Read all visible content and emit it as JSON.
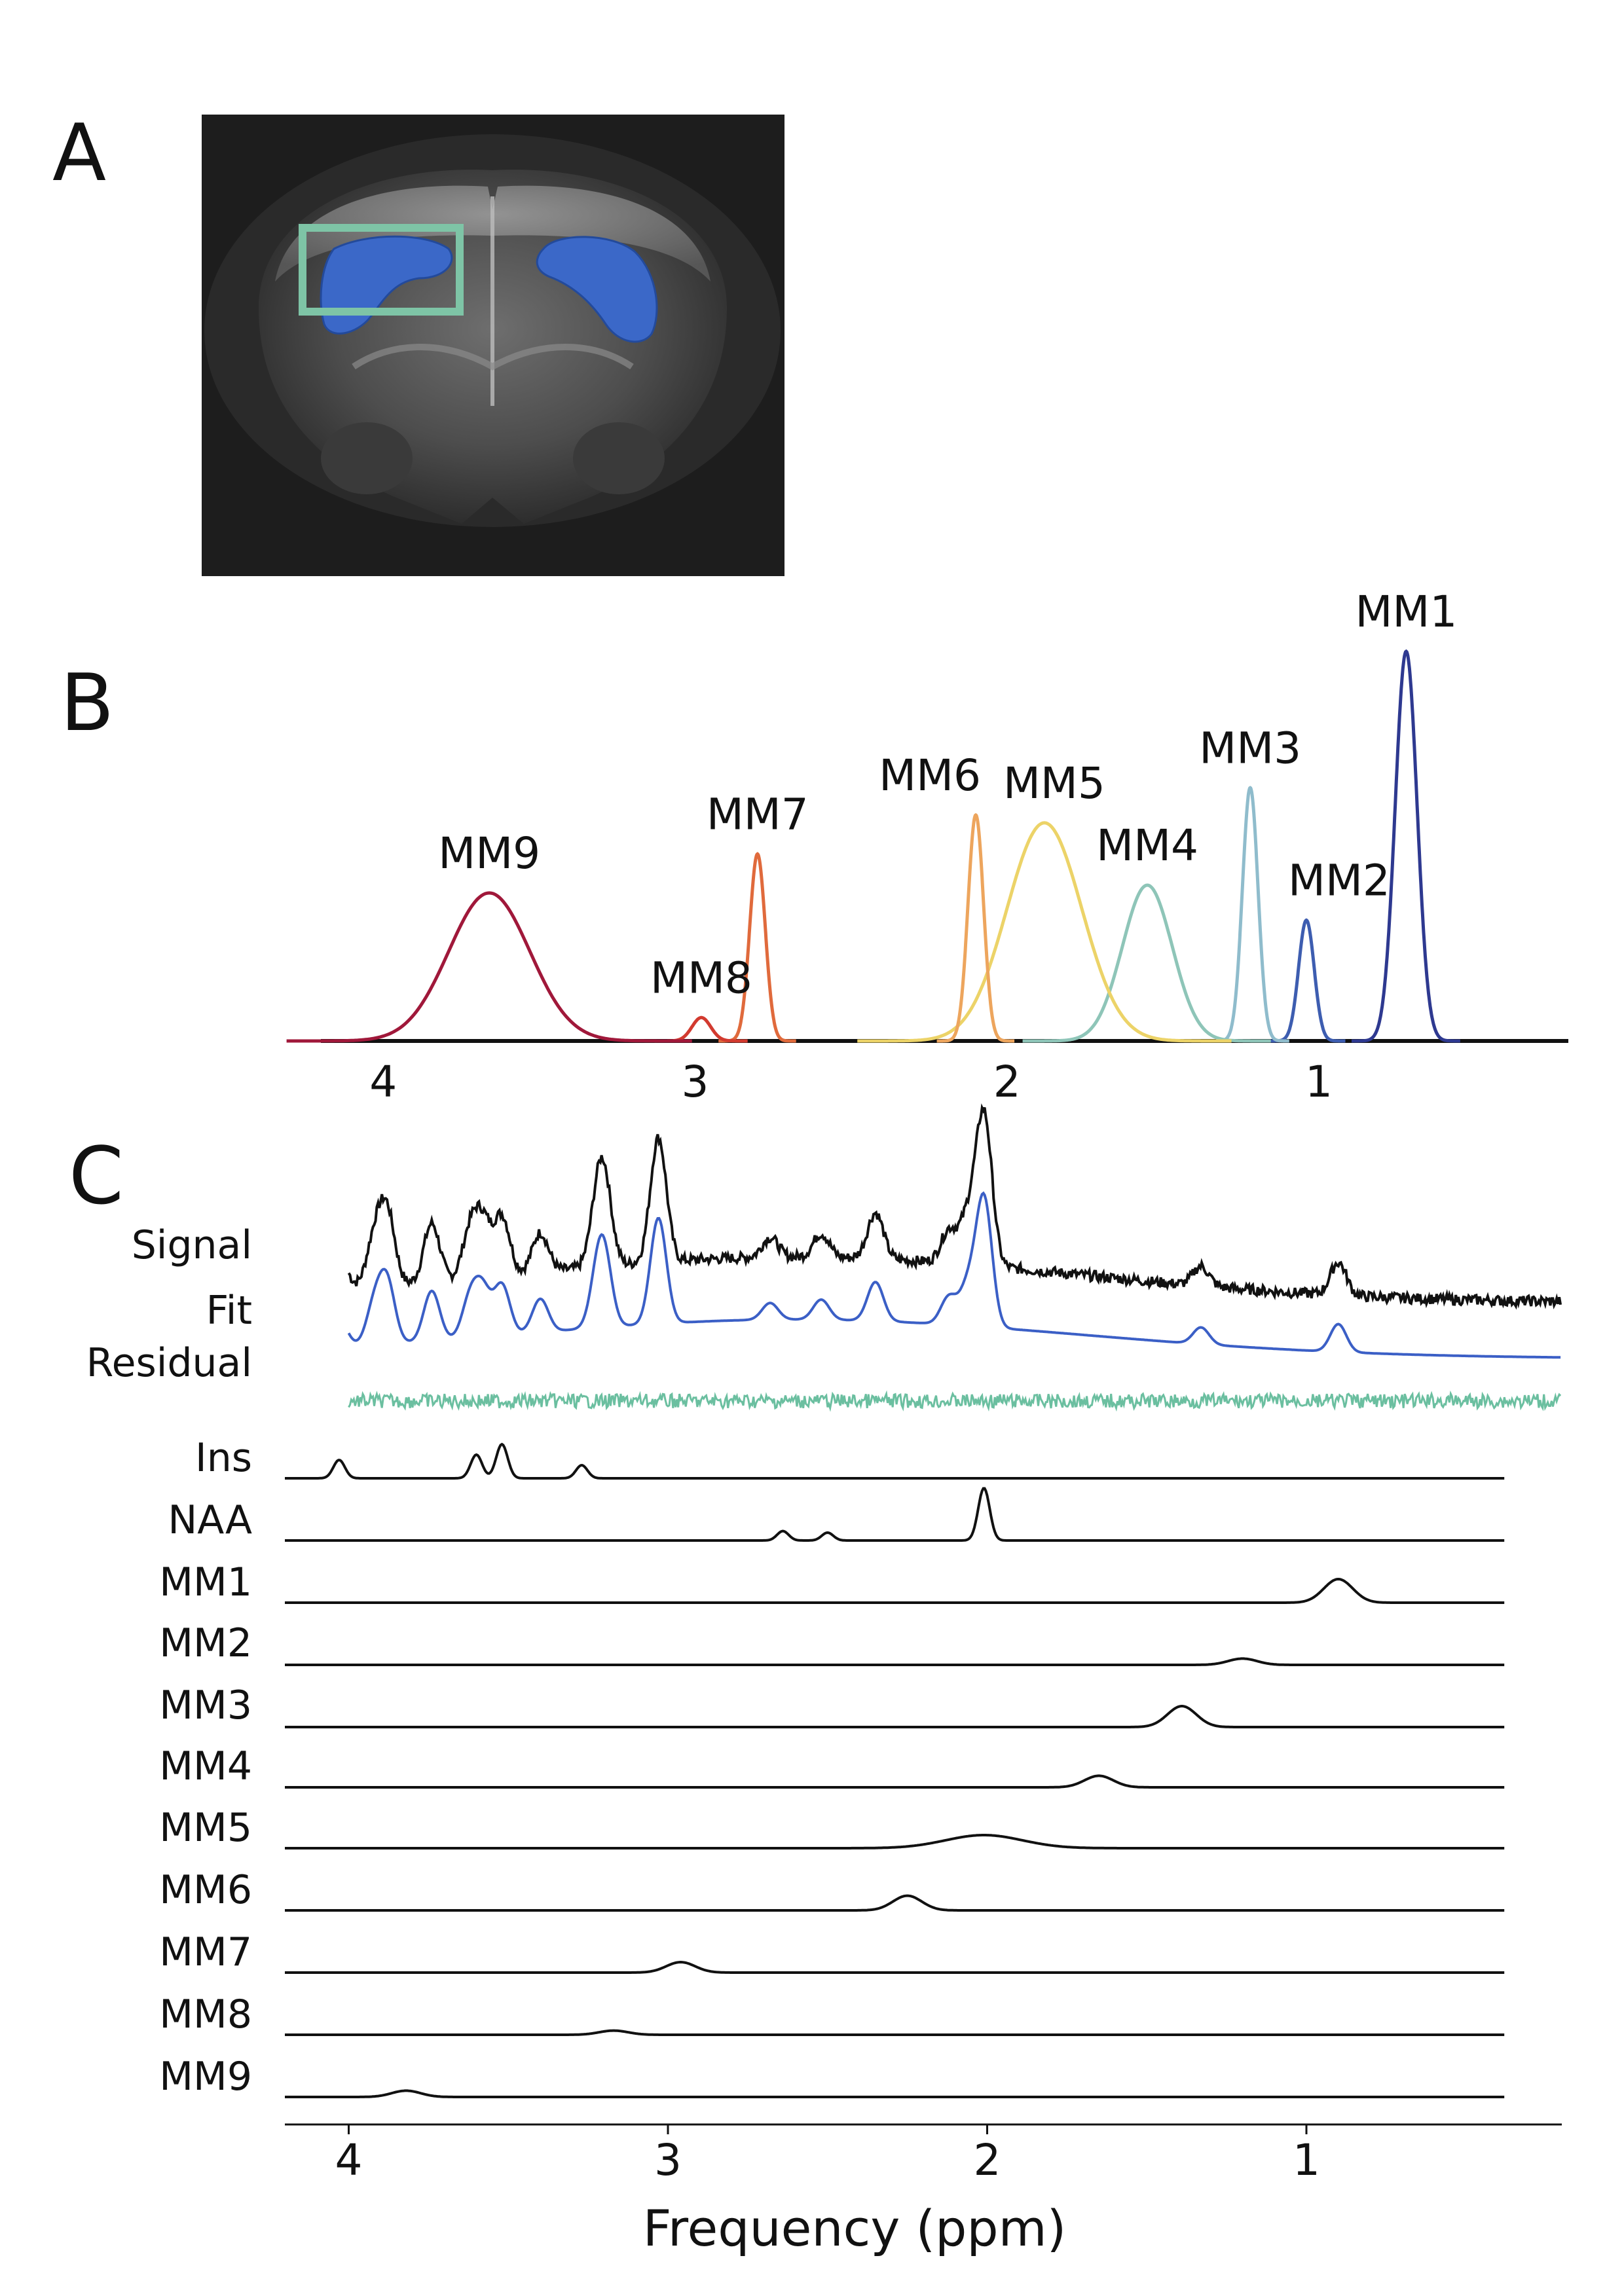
{
  "figure": {
    "panel_a": {
      "letter": "A",
      "image_description_icon": "mouse-brain-mri-icon",
      "roi_color": "#7ec4a6",
      "region_color": "#3b68c8"
    },
    "panel_b": {
      "letter": "B",
      "axis_ticks": [
        {
          "ppm": 4,
          "label": "4"
        },
        {
          "ppm": 3,
          "label": "3"
        },
        {
          "ppm": 2,
          "label": "2"
        },
        {
          "ppm": 1,
          "label": "1"
        }
      ]
    },
    "panel_c": {
      "letter": "C",
      "axis_ticks": [
        {
          "ppm": 4,
          "label": "4"
        },
        {
          "ppm": 3,
          "label": "3"
        },
        {
          "ppm": 2,
          "label": "2"
        },
        {
          "ppm": 1,
          "label": "1"
        }
      ],
      "xlabel": "Frequency (ppm)"
    }
  },
  "chart_data": [
    {
      "type": "line",
      "title": "B",
      "xlabel": "",
      "ylabel": "",
      "x_axis": "ppm (reversed)",
      "xlim": [
        4.2,
        0.2
      ],
      "ylim": [
        0,
        1
      ],
      "series": [
        {
          "name": "MM1",
          "label": "MM1",
          "center": 0.72,
          "height": 1.0,
          "width": 0.035,
          "color": "#2e3990"
        },
        {
          "name": "MM2",
          "label": "MM2",
          "center": 1.04,
          "height": 0.31,
          "width": 0.025,
          "color": "#3d5db0"
        },
        {
          "name": "MM3",
          "label": "MM3",
          "center": 1.22,
          "height": 0.65,
          "width": 0.025,
          "color": "#8fbccc"
        },
        {
          "name": "MM4",
          "label": "MM4",
          "center": 1.55,
          "height": 0.4,
          "width": 0.08,
          "color": "#8ec5b8"
        },
        {
          "name": "MM5",
          "label": "MM5",
          "center": 1.88,
          "height": 0.56,
          "width": 0.12,
          "color": "#ecd368"
        },
        {
          "name": "MM6",
          "label": "MM6",
          "center": 2.1,
          "height": 0.58,
          "width": 0.025,
          "color": "#eda55d"
        },
        {
          "name": "MM7",
          "label": "MM7",
          "center": 2.8,
          "height": 0.48,
          "width": 0.025,
          "color": "#e06a3c"
        },
        {
          "name": "MM8",
          "label": "MM8",
          "center": 2.98,
          "height": 0.06,
          "width": 0.03,
          "color": "#d23a2f"
        },
        {
          "name": "MM9",
          "label": "MM9",
          "center": 3.66,
          "height": 0.38,
          "width": 0.13,
          "color": "#a0183a"
        }
      ]
    },
    {
      "type": "line",
      "title": "C",
      "xlabel": "Frequency (ppm)",
      "ylabel": "",
      "x_axis": "ppm (reversed)",
      "xlim": [
        4.2,
        0.2
      ],
      "traces": [
        {
          "name": "Signal",
          "label": "Signal",
          "color": "#111111"
        },
        {
          "name": "Fit",
          "label": "Fit",
          "color": "#3b5fc6"
        },
        {
          "name": "Residual",
          "label": "Residual",
          "color": "#6bbfa0"
        },
        {
          "name": "Ins",
          "label": "Ins",
          "color": "#111111",
          "peaks": [
            [
              4.03,
              0.35
            ],
            [
              3.6,
              0.45
            ],
            [
              3.52,
              0.65
            ],
            [
              3.27,
              0.25
            ]
          ]
        },
        {
          "name": "NAA",
          "label": "NAA",
          "color": "#111111",
          "peaks": [
            [
              2.64,
              0.18
            ],
            [
              2.5,
              0.15
            ],
            [
              2.01,
              1.0
            ]
          ]
        },
        {
          "name": "MM1",
          "label": "MM1",
          "color": "#111111",
          "peaks": [
            [
              0.9,
              0.45
            ]
          ]
        },
        {
          "name": "MM2",
          "label": "MM2",
          "color": "#111111",
          "peaks": [
            [
              1.2,
              0.12
            ]
          ]
        },
        {
          "name": "MM3",
          "label": "MM3",
          "color": "#111111",
          "peaks": [
            [
              1.39,
              0.4
            ]
          ]
        },
        {
          "name": "MM4",
          "label": "MM4",
          "color": "#111111",
          "peaks": [
            [
              1.65,
              0.22
            ]
          ]
        },
        {
          "name": "MM5",
          "label": "MM5",
          "color": "#111111",
          "peaks": [
            [
              2.01,
              0.25
            ]
          ]
        },
        {
          "name": "MM6",
          "label": "MM6",
          "color": "#111111",
          "peaks": [
            [
              2.25,
              0.28
            ]
          ]
        },
        {
          "name": "MM7",
          "label": "MM7",
          "color": "#111111",
          "peaks": [
            [
              2.96,
              0.2
            ]
          ]
        },
        {
          "name": "MM8",
          "label": "MM8",
          "color": "#111111",
          "peaks": [
            [
              3.17,
              0.08
            ]
          ]
        },
        {
          "name": "MM9",
          "label": "MM9",
          "color": "#111111",
          "peaks": [
            [
              3.82,
              0.12
            ]
          ]
        }
      ]
    }
  ]
}
